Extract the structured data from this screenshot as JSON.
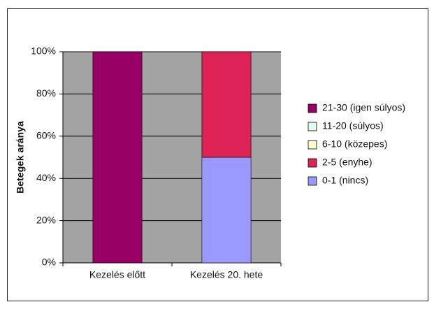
{
  "chart_data": {
    "type": "stacked_bar",
    "y_label": "Betegek aránya",
    "categories": [
      "Kezelés előtt",
      "Kezelés 20. hete"
    ],
    "series": [
      {
        "name": "0-1 (nincs)",
        "color": "#9999ff",
        "values": [
          0,
          50
        ]
      },
      {
        "name": "2-5 (enyhe)",
        "color": "#dd2255",
        "values": [
          0,
          50
        ]
      },
      {
        "name": "6-10 (közepes)",
        "color": "#ffffcc",
        "values": [
          0,
          0
        ]
      },
      {
        "name": "11-20 (súlyos)",
        "color": "#ddfff0",
        "values": [
          0,
          0
        ]
      },
      {
        "name": "21-30 (igen súlyos)",
        "color": "#990066",
        "values": [
          100,
          0
        ]
      }
    ],
    "ylim": [
      0,
      100
    ],
    "yticks": [
      {
        "value": 0,
        "label": "0%"
      },
      {
        "value": 20,
        "label": "20%"
      },
      {
        "value": 40,
        "label": "40%"
      },
      {
        "value": 60,
        "label": "60%"
      },
      {
        "value": 80,
        "label": "80%"
      },
      {
        "value": 100,
        "label": "100%"
      }
    ],
    "grid": true,
    "legend": "right"
  }
}
